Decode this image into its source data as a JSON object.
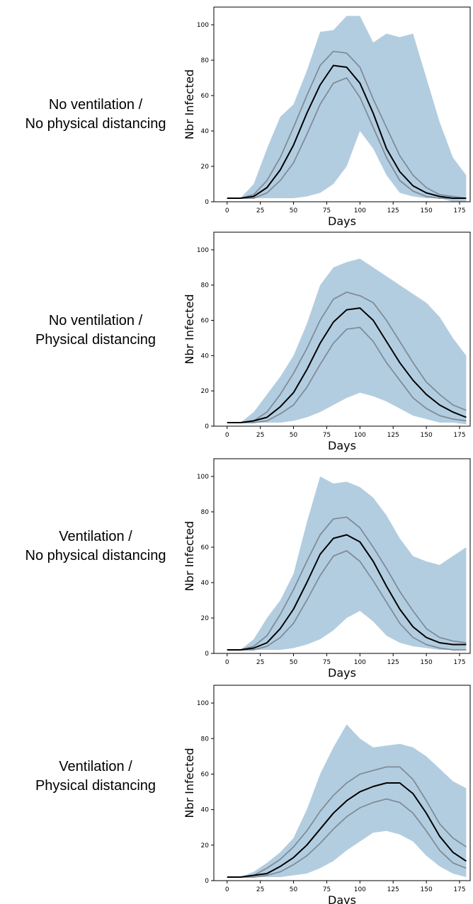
{
  "row_labels": [
    [
      "No ventilation /",
      "No physical distancing"
    ],
    [
      "No ventilation /",
      "Physical distancing"
    ],
    [
      "Ventilation /",
      "No physical distancing"
    ],
    [
      "Ventilation /",
      "Physical distancing"
    ]
  ],
  "colors": {
    "band": "#b3cde0",
    "quartile": "#7f8c99",
    "median": "#000000",
    "axis": "#000000"
  },
  "chart_data": [
    {
      "type": "line",
      "title": "",
      "xlabel": "Days",
      "ylabel": "Nbr Infected",
      "xlim": [
        -10,
        183
      ],
      "ylim": [
        0,
        110
      ],
      "xticks": [
        0,
        25,
        50,
        75,
        100,
        125,
        150,
        175
      ],
      "yticks": [
        0,
        20,
        40,
        60,
        80,
        100
      ],
      "x": [
        0,
        10,
        20,
        30,
        40,
        50,
        60,
        70,
        80,
        90,
        100,
        110,
        120,
        130,
        140,
        150,
        160,
        170,
        180
      ],
      "series": [
        {
          "role": "band-upper",
          "values": [
            2,
            2,
            10,
            30,
            48,
            55,
            74,
            96,
            97,
            105,
            105,
            90,
            95,
            93,
            95,
            70,
            45,
            25,
            15
          ]
        },
        {
          "role": "band-lower",
          "values": [
            2,
            2,
            2,
            2,
            2,
            2,
            3,
            5,
            10,
            20,
            40,
            30,
            15,
            5,
            3,
            2,
            2,
            0,
            0
          ]
        },
        {
          "role": "q-upper",
          "values": [
            2,
            2,
            4,
            12,
            25,
            42,
            60,
            77,
            85,
            84,
            76,
            58,
            42,
            26,
            15,
            8,
            4,
            3,
            2
          ]
        },
        {
          "role": "median",
          "values": [
            2,
            2,
            3,
            8,
            18,
            32,
            50,
            66,
            77,
            76,
            67,
            50,
            30,
            17,
            9,
            5,
            3,
            2,
            2
          ]
        },
        {
          "role": "q-lower",
          "values": [
            2,
            2,
            2,
            5,
            12,
            22,
            38,
            55,
            67,
            70,
            59,
            42,
            25,
            12,
            6,
            3,
            2,
            2,
            2
          ]
        }
      ]
    },
    {
      "type": "line",
      "title": "",
      "xlabel": "Days",
      "ylabel": "Nbr Infected",
      "xlim": [
        -10,
        183
      ],
      "ylim": [
        0,
        110
      ],
      "xticks": [
        0,
        25,
        50,
        75,
        100,
        125,
        150,
        175
      ],
      "yticks": [
        0,
        20,
        40,
        60,
        80,
        100
      ],
      "x": [
        0,
        10,
        20,
        30,
        40,
        50,
        60,
        70,
        80,
        90,
        100,
        110,
        120,
        130,
        140,
        150,
        160,
        170,
        180
      ],
      "series": [
        {
          "role": "band-upper",
          "values": [
            2,
            2,
            8,
            18,
            28,
            40,
            58,
            80,
            90,
            93,
            95,
            90,
            85,
            80,
            75,
            70,
            62,
            50,
            40
          ]
        },
        {
          "role": "band-lower",
          "values": [
            2,
            2,
            2,
            2,
            2,
            3,
            5,
            8,
            12,
            16,
            19,
            17,
            14,
            10,
            6,
            4,
            2,
            2,
            1
          ]
        },
        {
          "role": "q-upper",
          "values": [
            2,
            2,
            3,
            8,
            18,
            30,
            44,
            60,
            72,
            76,
            74,
            70,
            60,
            48,
            36,
            25,
            18,
            12,
            9
          ]
        },
        {
          "role": "median",
          "values": [
            2,
            2,
            3,
            5,
            11,
            19,
            32,
            47,
            59,
            66,
            67,
            60,
            48,
            36,
            26,
            18,
            12,
            8,
            5
          ]
        },
        {
          "role": "q-lower",
          "values": [
            2,
            2,
            2,
            3,
            7,
            12,
            22,
            35,
            47,
            55,
            56,
            48,
            36,
            26,
            16,
            10,
            6,
            4,
            3
          ]
        }
      ]
    },
    {
      "type": "line",
      "title": "",
      "xlabel": "Days",
      "ylabel": "Nbr Infected",
      "xlim": [
        -10,
        183
      ],
      "ylim": [
        0,
        110
      ],
      "xticks": [
        0,
        25,
        50,
        75,
        100,
        125,
        150,
        175
      ],
      "yticks": [
        0,
        20,
        40,
        60,
        80,
        100
      ],
      "x": [
        0,
        10,
        20,
        30,
        40,
        50,
        60,
        70,
        80,
        90,
        100,
        110,
        120,
        130,
        140,
        150,
        160,
        170,
        180
      ],
      "series": [
        {
          "role": "band-upper",
          "values": [
            2,
            2,
            8,
            20,
            30,
            45,
            74,
            100,
            96,
            97,
            94,
            88,
            78,
            65,
            55,
            52,
            50,
            55,
            60
          ]
        },
        {
          "role": "band-lower",
          "values": [
            2,
            2,
            2,
            2,
            2,
            3,
            5,
            8,
            13,
            20,
            24,
            18,
            10,
            6,
            4,
            3,
            2,
            2,
            2
          ]
        },
        {
          "role": "q-upper",
          "values": [
            2,
            2,
            4,
            10,
            22,
            36,
            52,
            67,
            76,
            77,
            71,
            60,
            48,
            35,
            24,
            14,
            9,
            7,
            6
          ]
        },
        {
          "role": "median",
          "values": [
            2,
            2,
            3,
            6,
            14,
            25,
            40,
            56,
            65,
            67,
            63,
            52,
            38,
            25,
            15,
            9,
            6,
            5,
            5
          ]
        },
        {
          "role": "q-lower",
          "values": [
            2,
            2,
            2,
            4,
            9,
            17,
            30,
            44,
            55,
            58,
            52,
            41,
            29,
            17,
            9,
            5,
            3,
            2,
            2
          ]
        }
      ]
    },
    {
      "type": "line",
      "title": "",
      "xlabel": "Days",
      "ylabel": "Nbr Infected",
      "xlim": [
        -10,
        183
      ],
      "ylim": [
        0,
        110
      ],
      "xticks": [
        0,
        25,
        50,
        75,
        100,
        125,
        150,
        175
      ],
      "yticks": [
        0,
        20,
        40,
        60,
        80,
        100
      ],
      "x": [
        0,
        10,
        20,
        30,
        40,
        50,
        60,
        70,
        80,
        90,
        100,
        110,
        120,
        130,
        140,
        150,
        160,
        170,
        180
      ],
      "series": [
        {
          "role": "band-upper",
          "values": [
            2,
            2,
            5,
            10,
            16,
            24,
            40,
            60,
            75,
            88,
            80,
            75,
            76,
            77,
            75,
            70,
            63,
            56,
            52
          ]
        },
        {
          "role": "band-lower",
          "values": [
            2,
            2,
            2,
            2,
            2,
            3,
            4,
            7,
            11,
            17,
            22,
            27,
            28,
            26,
            22,
            14,
            8,
            4,
            2
          ]
        },
        {
          "role": "q-upper",
          "values": [
            2,
            2,
            3,
            7,
            12,
            19,
            28,
            39,
            48,
            55,
            60,
            62,
            64,
            64,
            57,
            45,
            32,
            24,
            19
          ]
        },
        {
          "role": "median",
          "values": [
            2,
            2,
            3,
            4,
            8,
            13,
            20,
            29,
            38,
            45,
            50,
            53,
            55,
            55,
            49,
            38,
            25,
            16,
            11
          ]
        },
        {
          "role": "q-lower",
          "values": [
            2,
            2,
            2,
            3,
            5,
            9,
            14,
            21,
            29,
            36,
            41,
            44,
            46,
            44,
            38,
            28,
            17,
            10,
            7
          ]
        }
      ]
    }
  ]
}
